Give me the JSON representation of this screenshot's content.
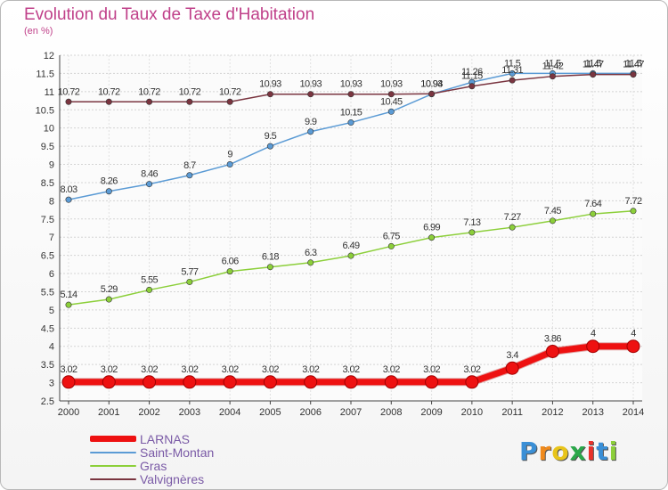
{
  "chart_data": {
    "type": "line",
    "title": "Evolution du Taux de Taxe d'Habitation",
    "subtitle": "(en %)",
    "x": [
      2000,
      2001,
      2002,
      2003,
      2004,
      2005,
      2006,
      2007,
      2008,
      2009,
      2010,
      2011,
      2012,
      2013,
      2014
    ],
    "ylim": [
      2.5,
      12
    ],
    "yticks": [
      "2.5",
      "3",
      "3.5",
      "4",
      "4.5",
      "5",
      "5.5",
      "6",
      "6.5",
      "7",
      "7.5",
      "8",
      "8.5",
      "9",
      "9.5",
      "10",
      "10.5",
      "11",
      "11.5",
      "12"
    ],
    "grid": true,
    "legend_position": "bottom-left",
    "series": [
      {
        "name": "LARNAS",
        "color": "#ee1111",
        "values": [
          3.02,
          3.02,
          3.02,
          3.02,
          3.02,
          3.02,
          3.02,
          3.02,
          3.02,
          3.02,
          3.02,
          3.4,
          3.86,
          4,
          4
        ],
        "labels": [
          "3.02",
          "3.02",
          "3.02",
          "3.02",
          "3.02",
          "3.02",
          "3.02",
          "3.02",
          "3.02",
          "3.02",
          "3.02",
          "3.4",
          "3.86",
          "4",
          "4"
        ]
      },
      {
        "name": "Saint-Montan",
        "color": "#5b9bd5",
        "values": [
          8.03,
          8.26,
          8.46,
          8.7,
          9,
          9.5,
          9.9,
          10.15,
          10.45,
          10.93,
          11.26,
          11.5,
          11.5,
          11.5,
          11.5
        ],
        "labels": [
          "8.03",
          "8.26",
          "8.46",
          "8.7",
          "9",
          "9.5",
          "9.9",
          "10.15",
          "10.45",
          "10.93",
          "11.26",
          "11.5",
          "11.5",
          "11.5",
          "11.5"
        ]
      },
      {
        "name": "Gras",
        "color": "#8ccf3a",
        "values": [
          5.14,
          5.29,
          5.55,
          5.77,
          6.06,
          6.18,
          6.3,
          6.49,
          6.75,
          6.99,
          7.13,
          7.27,
          7.45,
          7.64,
          7.72
        ],
        "labels": [
          "5.14",
          "5.29",
          "5.55",
          "5.77",
          "6.06",
          "6.18",
          "6.3",
          "6.49",
          "6.75",
          "6.99",
          "7.13",
          "7.27",
          "7.45",
          "7.64",
          "7.72"
        ]
      },
      {
        "name": "Valvignères",
        "color": "#7a3540",
        "values": [
          10.72,
          10.72,
          10.72,
          10.72,
          10.72,
          10.93,
          10.93,
          10.93,
          10.93,
          10.94,
          11.15,
          11.31,
          11.42,
          11.47,
          11.47
        ],
        "labels": [
          "10.72",
          "10.72",
          "10.72",
          "10.72",
          "10.72",
          "10.93",
          "10.93",
          "10.93",
          "10.93",
          "10.94",
          "11.15",
          "11.31",
          "11.42",
          "11.47",
          "11.47"
        ]
      }
    ]
  },
  "logo": {
    "text": "Proxiti",
    "letters": [
      "P",
      "r",
      "o",
      "x",
      "i",
      "t",
      "i"
    ],
    "colors": [
      "#3a8fd6",
      "#f08a1c",
      "#e8c41a",
      "#2aa84a",
      "#e8312a",
      "#3a8fd6",
      "#8ccf3a"
    ]
  }
}
